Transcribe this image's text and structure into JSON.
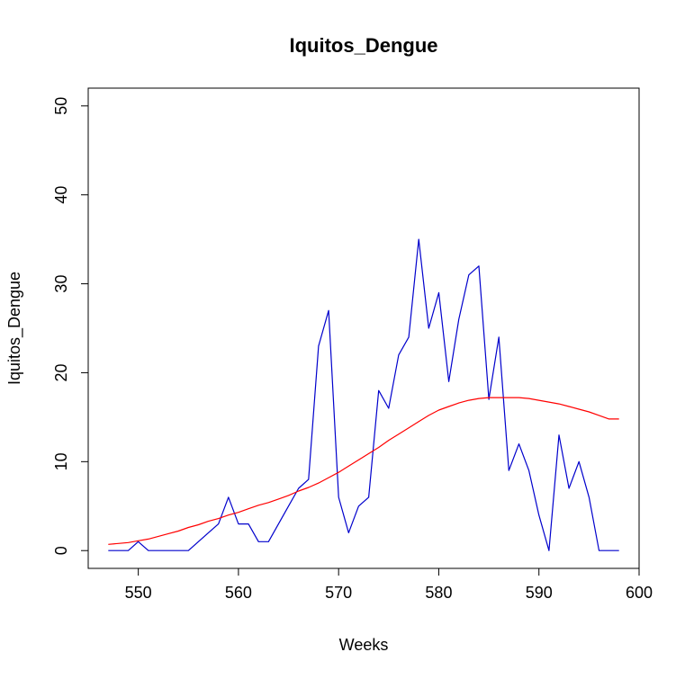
{
  "chart_data": {
    "type": "line",
    "title": "Iquitos_Dengue",
    "xlabel": "Weeks",
    "ylabel": "Iquitos_Dengue",
    "xlim": [
      545,
      600
    ],
    "ylim": [
      -2,
      52
    ],
    "x_ticks": [
      550,
      560,
      570,
      580,
      590,
      600
    ],
    "y_ticks": [
      0,
      10,
      20,
      30,
      40,
      50
    ],
    "grid": false,
    "legend": "none",
    "series": [
      {
        "color": "#0000cc",
        "x": [
          547,
          548,
          549,
          550,
          551,
          552,
          553,
          554,
          555,
          556,
          557,
          558,
          559,
          560,
          561,
          562,
          563,
          564,
          565,
          566,
          567,
          568,
          569,
          570,
          571,
          572,
          573,
          574,
          575,
          576,
          577,
          578,
          579,
          580,
          581,
          582,
          583,
          584,
          585,
          586,
          587,
          588,
          589,
          590,
          591,
          592,
          593,
          594,
          595,
          596,
          597,
          598
        ],
        "values": [
          0,
          0,
          0,
          1,
          0,
          0,
          0,
          0,
          0,
          1,
          2,
          3,
          6,
          3,
          3,
          1,
          1,
          3,
          5,
          7,
          8,
          23,
          27,
          6,
          2,
          5,
          6,
          18,
          16,
          22,
          24,
          35,
          25,
          29,
          19,
          26,
          31,
          32,
          17,
          24,
          9,
          12,
          9,
          4,
          0,
          13,
          7,
          10,
          6,
          0,
          0,
          0
        ]
      },
      {
        "color": "#ff0000",
        "x": [
          547,
          548,
          549,
          550,
          551,
          552,
          553,
          554,
          555,
          556,
          557,
          558,
          559,
          560,
          561,
          562,
          563,
          564,
          565,
          566,
          567,
          568,
          569,
          570,
          571,
          572,
          573,
          574,
          575,
          576,
          577,
          578,
          579,
          580,
          581,
          582,
          583,
          584,
          585,
          586,
          587,
          588,
          589,
          590,
          591,
          592,
          593,
          594,
          595,
          596,
          597,
          598
        ],
        "values": [
          0.7,
          0.8,
          0.9,
          1.1,
          1.3,
          1.6,
          1.9,
          2.2,
          2.6,
          2.9,
          3.3,
          3.6,
          4.0,
          4.3,
          4.7,
          5.1,
          5.4,
          5.8,
          6.2,
          6.7,
          7.1,
          7.6,
          8.2,
          8.8,
          9.5,
          10.2,
          10.9,
          11.6,
          12.4,
          13.1,
          13.8,
          14.5,
          15.2,
          15.8,
          16.2,
          16.6,
          16.9,
          17.1,
          17.2,
          17.2,
          17.2,
          17.2,
          17.1,
          16.9,
          16.7,
          16.5,
          16.2,
          15.9,
          15.6,
          15.2,
          14.8,
          14.8
        ]
      }
    ]
  }
}
